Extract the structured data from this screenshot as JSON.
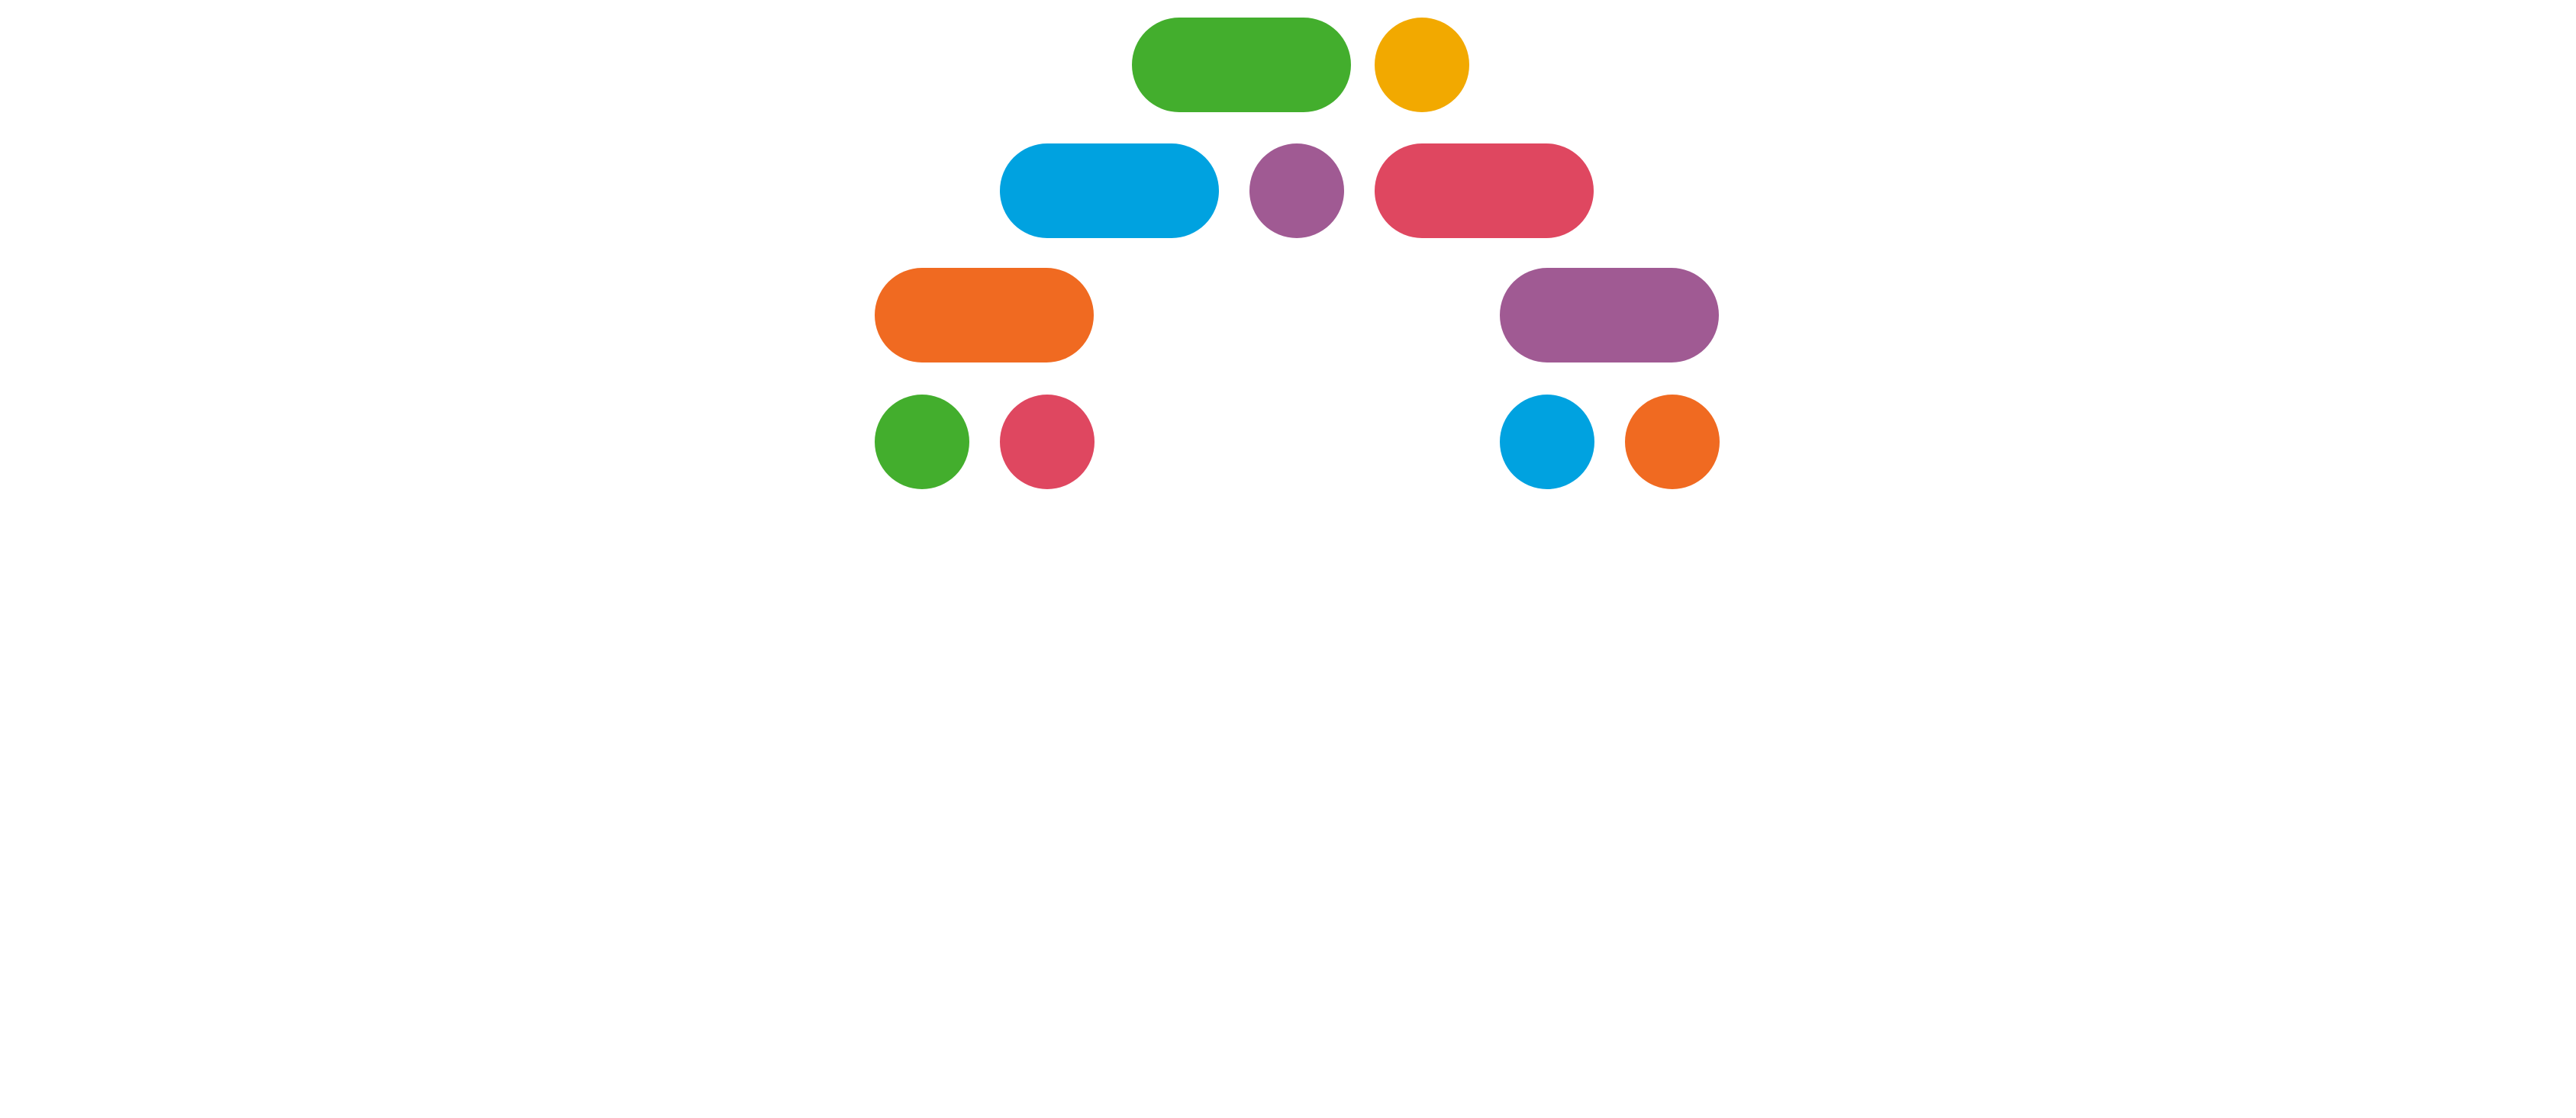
{
  "palette": {
    "green": "#43ae2d",
    "yellow": "#f2a900",
    "blue": "#00a2e0",
    "purple": "#a05a93",
    "red": "#df4760",
    "orange": "#f06a21"
  },
  "rows": [
    {
      "marks": [
        {
          "shape": "pill",
          "color": "green"
        },
        {
          "shape": "dot",
          "color": "yellow"
        }
      ]
    },
    {
      "marks": [
        {
          "shape": "pill",
          "color": "blue"
        },
        {
          "shape": "dot",
          "color": "purple"
        },
        {
          "shape": "pill",
          "color": "red"
        }
      ]
    },
    {
      "marks": [
        {
          "shape": "pill",
          "color": "orange"
        },
        {
          "shape": "pill",
          "color": "purple"
        }
      ]
    },
    {
      "marks": [
        {
          "shape": "dot",
          "color": "green"
        },
        {
          "shape": "dot",
          "color": "red"
        },
        {
          "shape": "dot",
          "color": "blue"
        },
        {
          "shape": "dot",
          "color": "orange"
        }
      ]
    }
  ]
}
